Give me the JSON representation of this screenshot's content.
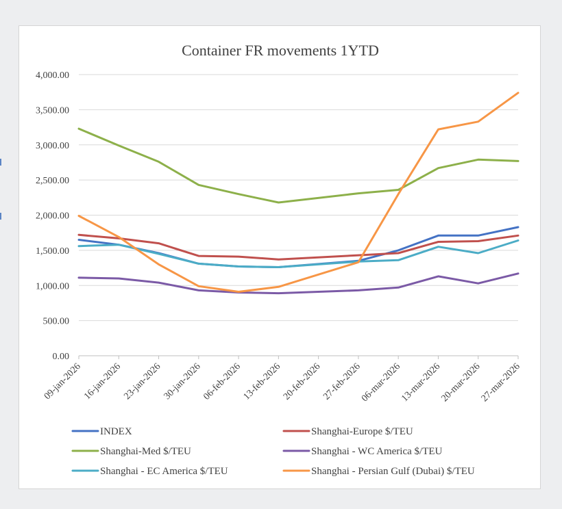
{
  "chart_data": {
    "type": "line",
    "title": "Container FR movements 1YTD",
    "xlabel": "",
    "ylabel": "",
    "ylim": [
      0,
      4000
    ],
    "y_ticks": [
      0,
      500,
      1000,
      1500,
      2000,
      2500,
      3000,
      3500,
      4000
    ],
    "y_tick_labels": [
      "0.00",
      "500.00",
      "1,000.00",
      "1,500.00",
      "2,000.00",
      "2,500.00",
      "3,000.00",
      "3,500.00",
      "4,000.00"
    ],
    "grid": true,
    "legend_position": "bottom",
    "categories": [
      "09-jan-2026",
      "16-jan-2026",
      "23-jan-2026",
      "30-jan-2026",
      "06-feb-2026",
      "13-feb-2026",
      "20-feb-2026",
      "27-feb-2026",
      "06-mar-2026",
      "13-mar-2026",
      "20-mar-2026",
      "27-mar-2026"
    ],
    "series": [
      {
        "name": "INDEX",
        "color": "#4472c4",
        "values": [
          1650,
          1580,
          1460,
          1310,
          1270,
          1260,
          null,
          1350,
          1500,
          1710,
          1710,
          1830
        ]
      },
      {
        "name": "Shanghai-Europe $/TEU",
        "color": "#c0504d",
        "values": [
          1720,
          1670,
          1600,
          1420,
          1410,
          1370,
          null,
          1430,
          1460,
          1620,
          1630,
          1710
        ]
      },
      {
        "name": "Shanghai-Med $/TEU",
        "color": "#8db04a",
        "values": [
          3230,
          2990,
          2760,
          2430,
          2300,
          2180,
          null,
          2310,
          2360,
          2670,
          2790,
          2770
        ]
      },
      {
        "name": "Shanghai - WC America $/TEU",
        "color": "#7b5aa6",
        "values": [
          1110,
          1100,
          1040,
          930,
          900,
          890,
          null,
          930,
          970,
          1130,
          1030,
          1170
        ]
      },
      {
        "name": "Shanghai - EC America $/TEU",
        "color": "#4bacc6",
        "values": [
          1560,
          1580,
          1450,
          1310,
          1270,
          1260,
          null,
          1340,
          1360,
          1550,
          1460,
          1640
        ]
      },
      {
        "name": "Shanghai - Persian Gulf (Dubai) $/TEU",
        "color": "#f79646",
        "values": [
          1990,
          1690,
          1300,
          990,
          910,
          980,
          null,
          1330,
          2300,
          3220,
          3330,
          3740
        ]
      }
    ]
  }
}
